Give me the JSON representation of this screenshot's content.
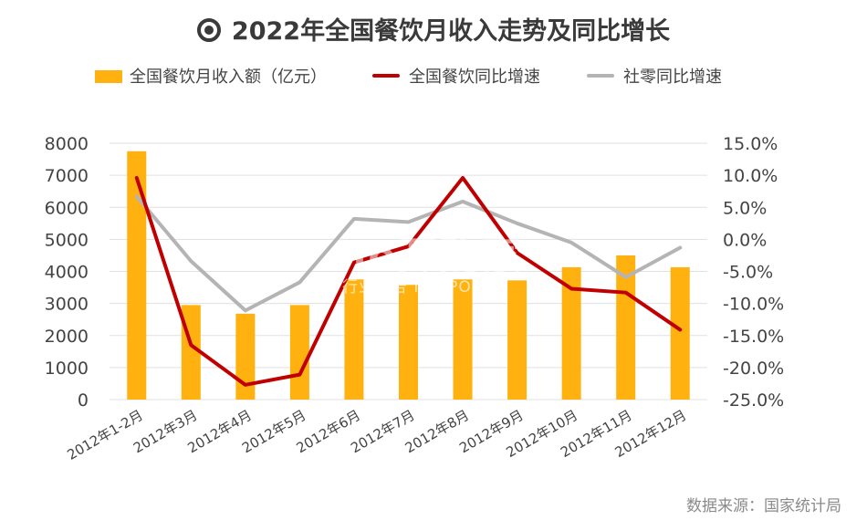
{
  "title": "2022年全国餐饮月收入走势及同比增长",
  "legend": {
    "bar_label": "全国餐饮月收入额（亿元）",
    "line1_label": "全国餐饮同比增速",
    "line2_label": "社零同比增速"
  },
  "source": "数据来源：国家统计局",
  "watermark": {
    "main": "ho开购家",
    "sub": "行业报告 IPOIPO.CN"
  },
  "colors": {
    "bar": "#FFB20F",
    "line1": "#C00000",
    "line2": "#B4B4B4",
    "grid": "#E0E0E0"
  },
  "chart_data": {
    "type": "bar",
    "categories": [
      "2012年1-2月",
      "2012年3月",
      "2012年4月",
      "2012年5月",
      "2012年6月",
      "2012年7月",
      "2012年8月",
      "2012年9月",
      "2012年10月",
      "2012年11月",
      "2012年12月"
    ],
    "series": [
      {
        "name": "全国餐饮月收入额（亿元）",
        "type": "bar",
        "axis": "left",
        "values": [
          7750,
          2950,
          2680,
          2950,
          3750,
          3580,
          3750,
          3720,
          4130,
          4500,
          4130
        ]
      },
      {
        "name": "全国餐饮同比增速",
        "type": "line",
        "axis": "right",
        "values": [
          9.6,
          -16.5,
          -22.7,
          -21.1,
          -3.6,
          -1.1,
          9.6,
          -2.1,
          -7.7,
          -8.3,
          -14.1
        ]
      },
      {
        "name": "社零同比增速",
        "type": "line",
        "axis": "right",
        "values": [
          6.7,
          -3.4,
          -11.1,
          -6.7,
          3.2,
          2.7,
          5.9,
          2.5,
          -0.5,
          -5.9,
          -1.3
        ]
      }
    ],
    "y_left": {
      "min": 0,
      "max": 8000,
      "ticks": [
        "0",
        "1000",
        "2000",
        "3000",
        "4000",
        "5000",
        "6000",
        "7000",
        "8000"
      ]
    },
    "y_right": {
      "min": -25,
      "max": 15,
      "ticks": [
        "-25.0%",
        "-20.0%",
        "-15.0%",
        "-10.0%",
        "-5.0%",
        "0.0%",
        "5.0%",
        "10.0%",
        "15.0%"
      ]
    },
    "grid": true,
    "legend_position": "top"
  }
}
